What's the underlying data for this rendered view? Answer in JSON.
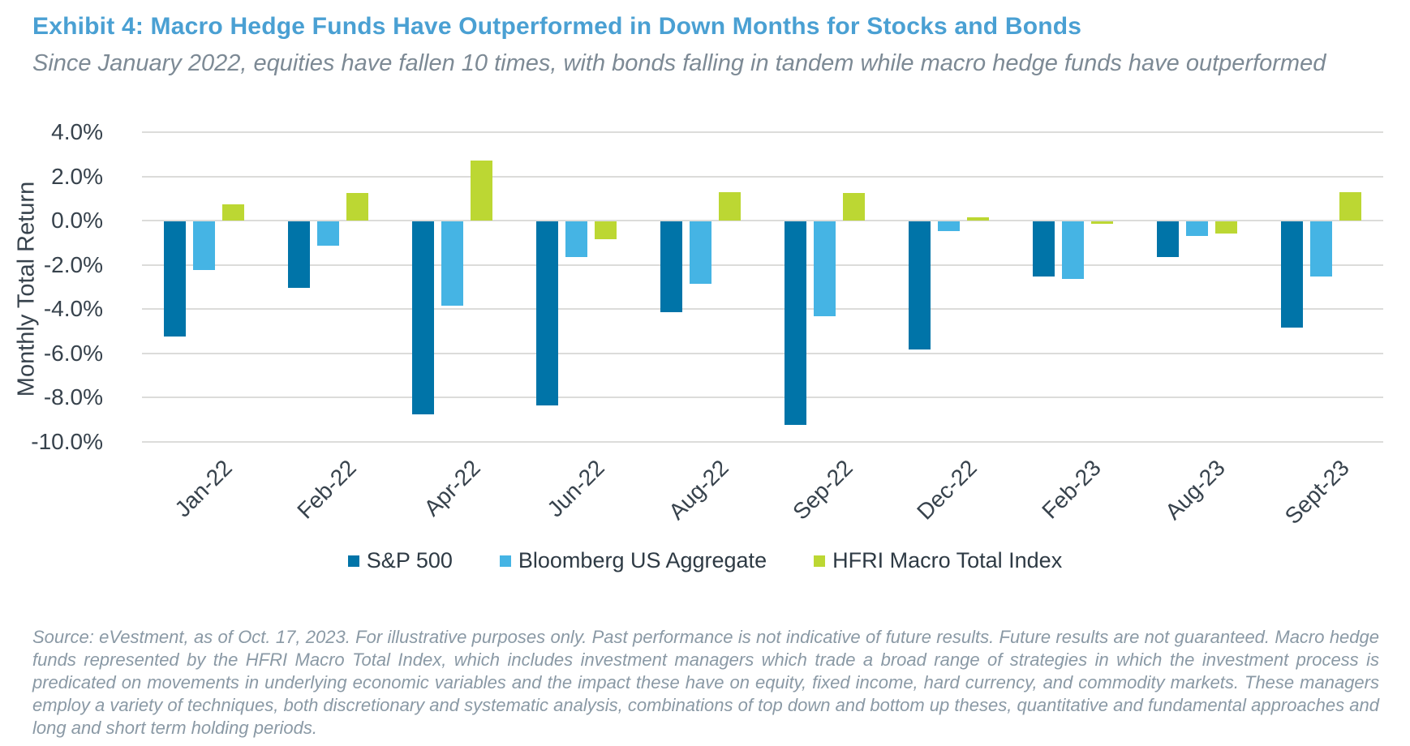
{
  "page": {
    "title": "Exhibit 4: Macro Hedge Funds Have Outperformed in Down Months for Stocks and Bonds",
    "subtitle": "Since January 2022, equities have fallen 10 times, with bonds falling in tandem while macro hedge funds have outperformed",
    "source_note": "Source: eVestment, as of Oct. 17, 2023. For illustrative purposes only. Past performance is not indicative of future results. Future results are not guaranteed. Macro hedge funds represented by the HFRI Macro Total Index, which includes investment managers which trade a broad range of strategies in which the investment process is predicated on movements in underlying economic variables and the impact these have on equity, fixed income, hard currency, and commodity markets. These managers employ a variety of techniques, both discretionary and systematic analysis, combinations of top down and bottom up theses, quantitative and fundamental approaches and long and short term holding periods."
  },
  "colors": {
    "title_blue": "#4AA0D3",
    "gridline": "#DCDCDA",
    "axis_text": "#37424C",
    "subtitle_text": "#7D8A95",
    "source_text": "#8A99A5"
  },
  "chart_data": {
    "type": "bar",
    "ylabel": "Monthly Total Return",
    "xlabel": "",
    "ylim": [
      -10,
      4
    ],
    "grid": "horizontal",
    "legend_position": "bottom",
    "y_tick_values": [
      4,
      2,
      0,
      -2,
      -4,
      -6,
      -8,
      -10
    ],
    "y_tick_labels": [
      "4.0%",
      "2.0%",
      "0.0%",
      "-2.0%",
      "-4.0%",
      "-6.0%",
      "-8.0%",
      "-10.0%"
    ],
    "categories": [
      "Jan-22",
      "Feb-22",
      "Apr-22",
      "Jun-22",
      "Aug-22",
      "Sep-22",
      "Dec-22",
      "Feb-23",
      "Aug-23",
      "Sept-23"
    ],
    "series": [
      {
        "name": "S&P 500",
        "color": "#0074A8",
        "values": [
          -5.2,
          -3.0,
          -8.7,
          -8.3,
          -4.1,
          -9.2,
          -5.8,
          -2.5,
          -1.6,
          -4.8
        ]
      },
      {
        "name": "Bloomberg US Aggregate",
        "color": "#45B4E4",
        "values": [
          -2.2,
          -1.1,
          -3.8,
          -1.6,
          -2.8,
          -4.3,
          -0.45,
          -2.6,
          -0.65,
          -2.5
        ]
      },
      {
        "name": "HFRI Macro Total Index",
        "color": "#BCD733",
        "values": [
          0.75,
          1.25,
          2.7,
          -0.8,
          1.3,
          1.25,
          0.15,
          -0.1,
          -0.55,
          1.3
        ]
      }
    ]
  }
}
